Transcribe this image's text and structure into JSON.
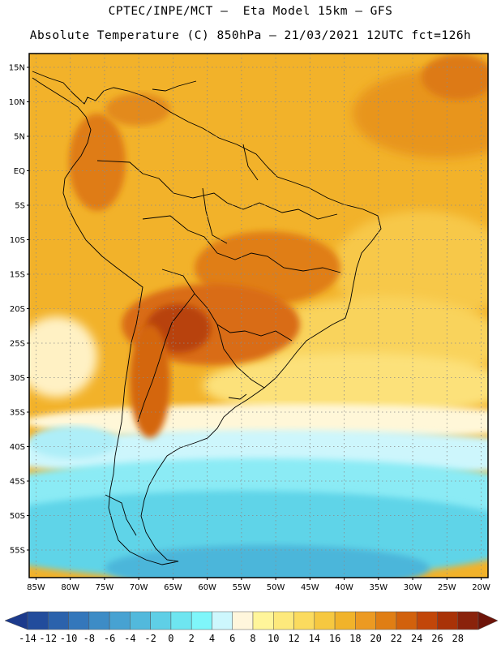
{
  "title_line1": "CPTEC/INPE/MCT –  Eta Model 15km – GFS",
  "title_line2": "Absolute Temperature (C) 850hPa – 21/03/2021 12UTC fct=126h",
  "map": {
    "lon_range": [
      -86,
      -19
    ],
    "lat_range": [
      -59,
      17
    ],
    "lat_ticks": [
      {
        "value": 15,
        "label": "15N"
      },
      {
        "value": 10,
        "label": "10N"
      },
      {
        "value": 5,
        "label": "5N"
      },
      {
        "value": 0,
        "label": "EQ"
      },
      {
        "value": -5,
        "label": "5S"
      },
      {
        "value": -10,
        "label": "10S"
      },
      {
        "value": -15,
        "label": "15S"
      },
      {
        "value": -20,
        "label": "20S"
      },
      {
        "value": -25,
        "label": "25S"
      },
      {
        "value": -30,
        "label": "30S"
      },
      {
        "value": -35,
        "label": "35S"
      },
      {
        "value": -40,
        "label": "40S"
      },
      {
        "value": -45,
        "label": "45S"
      },
      {
        "value": -50,
        "label": "50S"
      },
      {
        "value": -55,
        "label": "55S"
      }
    ],
    "lon_ticks": [
      {
        "value": -85,
        "label": "85W"
      },
      {
        "value": -80,
        "label": "80W"
      },
      {
        "value": -75,
        "label": "75W"
      },
      {
        "value": -70,
        "label": "70W"
      },
      {
        "value": -65,
        "label": "65W"
      },
      {
        "value": -60,
        "label": "60W"
      },
      {
        "value": -55,
        "label": "55W"
      },
      {
        "value": -50,
        "label": "50W"
      },
      {
        "value": -45,
        "label": "45W"
      },
      {
        "value": -40,
        "label": "40W"
      },
      {
        "value": -35,
        "label": "35W"
      },
      {
        "value": -30,
        "label": "30W"
      },
      {
        "value": -25,
        "label": "25W"
      },
      {
        "value": -20,
        "label": "20W"
      }
    ],
    "gridlines": true
  },
  "colorbar": {
    "unit": "C",
    "labels": [
      "-14",
      "-12",
      "-10",
      "-8",
      "-6",
      "-4",
      "-2",
      "0",
      "2",
      "4",
      "6",
      "8",
      "10",
      "12",
      "14",
      "16",
      "18",
      "20",
      "22",
      "24",
      "26",
      "28"
    ],
    "colors": [
      "#1c3a8c",
      "#224c9c",
      "#2b62ac",
      "#3477bb",
      "#3d8cc6",
      "#47a2d2",
      "#52b9dc",
      "#5fcfe6",
      "#6ee5f0",
      "#7ff6fa",
      "#cdf7fd",
      "#fff6dc",
      "#fff59a",
      "#fde97c",
      "#fbdb5e",
      "#f6c840",
      "#f1b32a",
      "#ec9a22",
      "#e07e14",
      "#d2610c",
      "#c24609",
      "#a93207",
      "#8a220b",
      "#6d1409"
    ]
  }
}
